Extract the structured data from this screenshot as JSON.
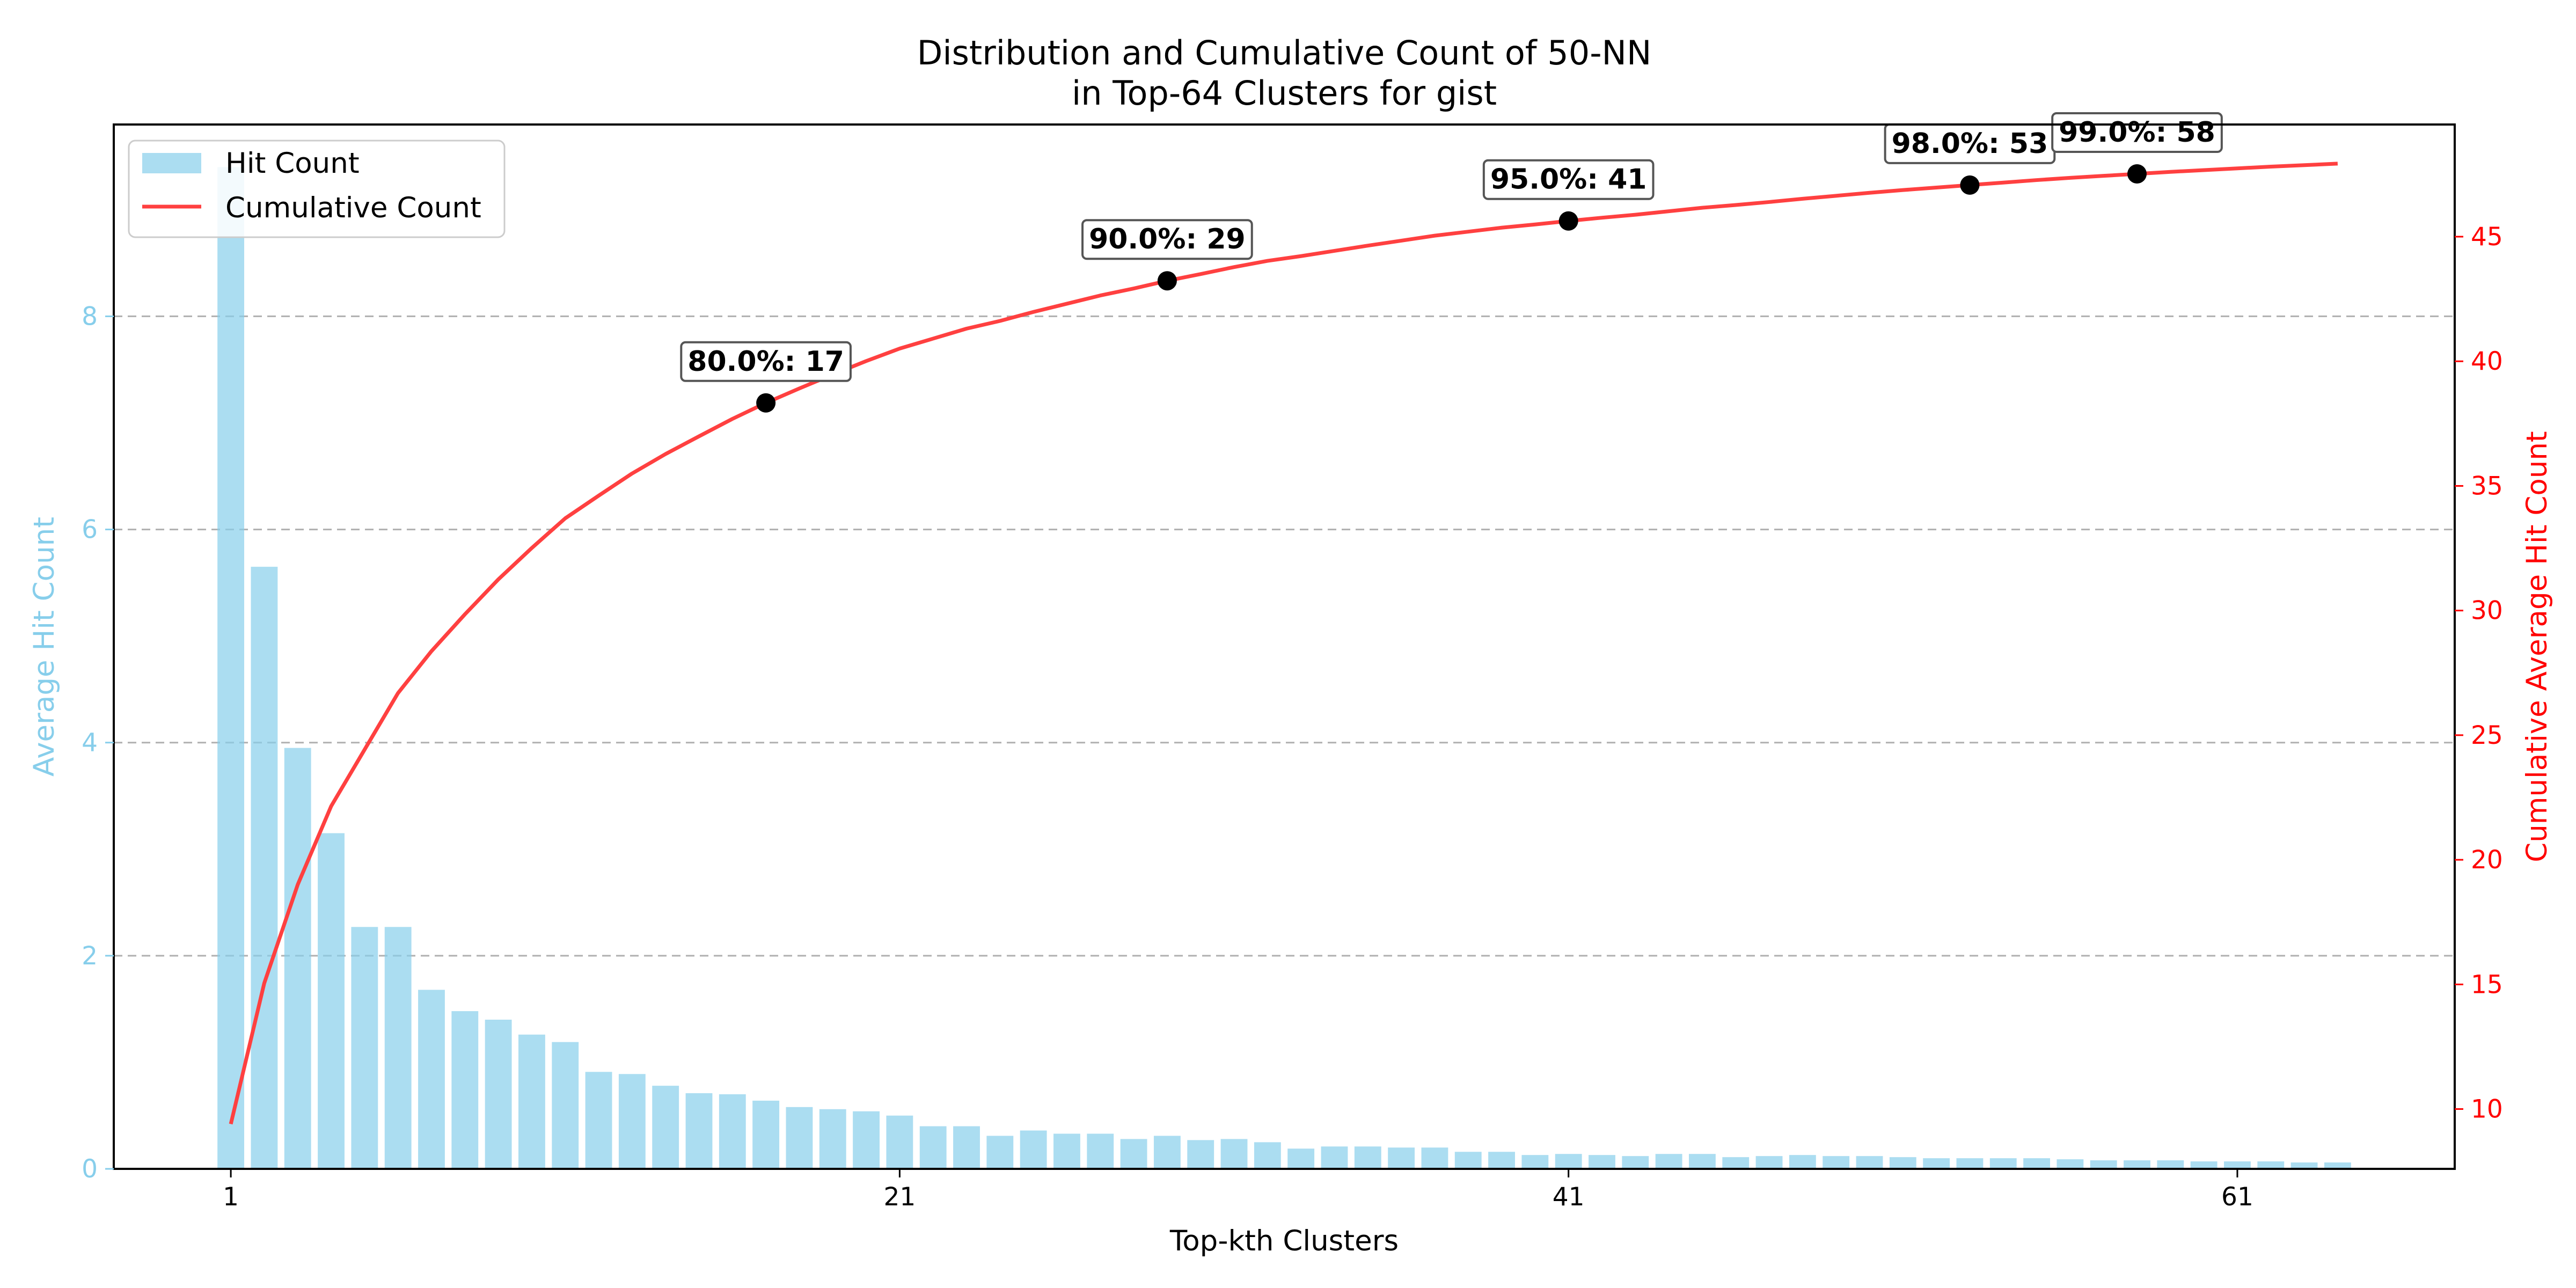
{
  "chart_data": {
    "type": "bar",
    "title_line1": "Distribution and Cumulative Count of 50-NN",
    "title_line2": "in Top-64 Clusters for gist",
    "xlabel": "Top-kth Clusters",
    "ylabel_left": "Average Hit Count",
    "ylabel_right": "Cumulative Average Hit Count",
    "x_ticks": [
      "1",
      "21",
      "41",
      "61"
    ],
    "y_left_ticks": [
      0,
      2,
      4,
      6,
      8
    ],
    "y_right_ticks": [
      10,
      15,
      20,
      25,
      30,
      35,
      40,
      45
    ],
    "ylim_left": [
      0,
      9.8
    ],
    "ylim_right": [
      7.6,
      49.5
    ],
    "xlim": [
      -2.5,
      67.5
    ],
    "grid": "horizontal dashed",
    "legend_location": "upper left",
    "colors": {
      "bars": "#87CEEB",
      "line": "#ff4040",
      "right_axis": "#ff0000",
      "markers": "#000000"
    },
    "categories": [
      1,
      2,
      3,
      4,
      5,
      6,
      7,
      8,
      9,
      10,
      11,
      12,
      13,
      14,
      15,
      16,
      17,
      18,
      19,
      20,
      21,
      22,
      23,
      24,
      25,
      26,
      27,
      28,
      29,
      30,
      31,
      32,
      33,
      34,
      35,
      36,
      37,
      38,
      39,
      40,
      41,
      42,
      43,
      44,
      45,
      46,
      47,
      48,
      49,
      50,
      51,
      52,
      53,
      54,
      55,
      56,
      57,
      58,
      59,
      60,
      61,
      62,
      63,
      64
    ],
    "series": [
      {
        "name": "Hit Count",
        "type": "bar",
        "axis": "left",
        "values": [
          9.4,
          5.65,
          3.95,
          3.15,
          2.27,
          2.27,
          1.68,
          1.48,
          1.4,
          1.26,
          1.19,
          0.91,
          0.89,
          0.78,
          0.71,
          0.7,
          0.64,
          0.58,
          0.56,
          0.54,
          0.5,
          0.4,
          0.4,
          0.31,
          0.36,
          0.33,
          0.33,
          0.28,
          0.31,
          0.27,
          0.28,
          0.25,
          0.19,
          0.21,
          0.21,
          0.2,
          0.2,
          0.16,
          0.16,
          0.13,
          0.14,
          0.13,
          0.12,
          0.14,
          0.14,
          0.11,
          0.12,
          0.13,
          0.12,
          0.12,
          0.11,
          0.1,
          0.1,
          0.1,
          0.1,
          0.09,
          0.08,
          0.08,
          0.08,
          0.07,
          0.07,
          0.07,
          0.06,
          0.06
        ]
      },
      {
        "name": "Cumulative Count",
        "type": "line",
        "axis": "right",
        "values": [
          9.4,
          15.05,
          19.0,
          22.15,
          24.42,
          26.69,
          28.37,
          29.85,
          31.25,
          32.51,
          33.7,
          34.61,
          35.5,
          36.28,
          36.99,
          37.69,
          38.33,
          38.91,
          39.47,
          40.01,
          40.51,
          40.91,
          41.31,
          41.62,
          41.98,
          42.31,
          42.64,
          42.92,
          43.23,
          43.5,
          43.78,
          44.03,
          44.22,
          44.43,
          44.64,
          44.84,
          45.04,
          45.2,
          45.36,
          45.49,
          45.63,
          45.76,
          45.88,
          46.02,
          46.16,
          46.27,
          46.39,
          46.52,
          46.64,
          46.76,
          46.87,
          46.97,
          47.07,
          47.17,
          47.27,
          47.36,
          47.44,
          47.52,
          47.6,
          47.67,
          47.74,
          47.81,
          47.87,
          47.93
        ]
      }
    ],
    "annotations": [
      {
        "label": "80.0%: 17",
        "x": 17,
        "y": 38.33
      },
      {
        "label": "90.0%: 29",
        "x": 29,
        "y": 43.23
      },
      {
        "label": "95.0%: 41",
        "x": 41,
        "y": 45.63
      },
      {
        "label": "98.0%: 53",
        "x": 53,
        "y": 47.07
      },
      {
        "label": "99.0%: 58",
        "x": 58,
        "y": 47.52
      }
    ]
  }
}
